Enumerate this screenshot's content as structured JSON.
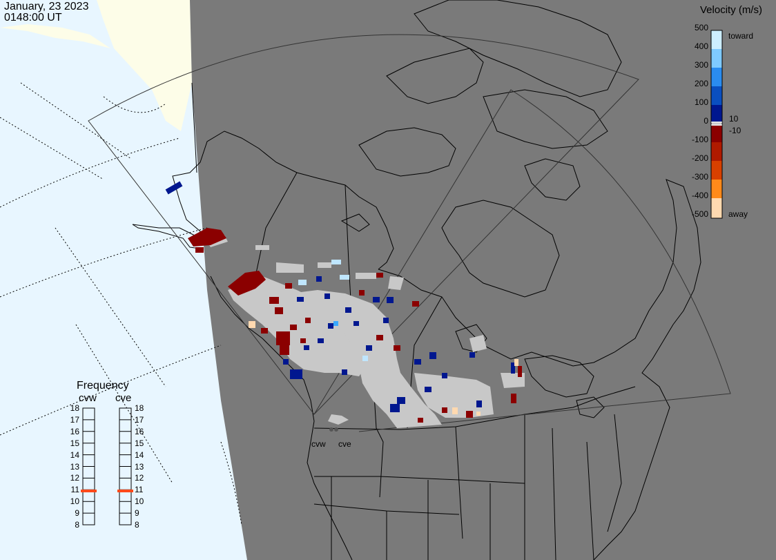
{
  "header": {
    "date": "January, 23 2023",
    "time": "0148:00 UT"
  },
  "legend": {
    "title": "Velocity (m/s)",
    "ticks": [
      "500",
      "400",
      "300",
      "200",
      "100",
      "0",
      "-100",
      "-200",
      "-300",
      "-400",
      "-500"
    ],
    "extra_ticks": [
      "10",
      "-10"
    ],
    "toward_label": "toward",
    "away_label": "away"
  },
  "frequency": {
    "title": "Frequency",
    "radars": [
      {
        "name": "cvw",
        "value_mhz": 10.9
      },
      {
        "name": "cve",
        "value_mhz": 10.9
      }
    ],
    "ticks": [
      "18",
      "17",
      "16",
      "15",
      "14",
      "13",
      "12",
      "11",
      "10",
      "9",
      "8"
    ]
  },
  "sites": {
    "west": "cvw",
    "east": "cve"
  },
  "colors": {
    "land": "#7a7a7a",
    "ocean": "#e8f6ff",
    "day_land": "#fdfde8",
    "ground_scatter": "#c8c8c8",
    "indicator": "#ff4a1a"
  }
}
